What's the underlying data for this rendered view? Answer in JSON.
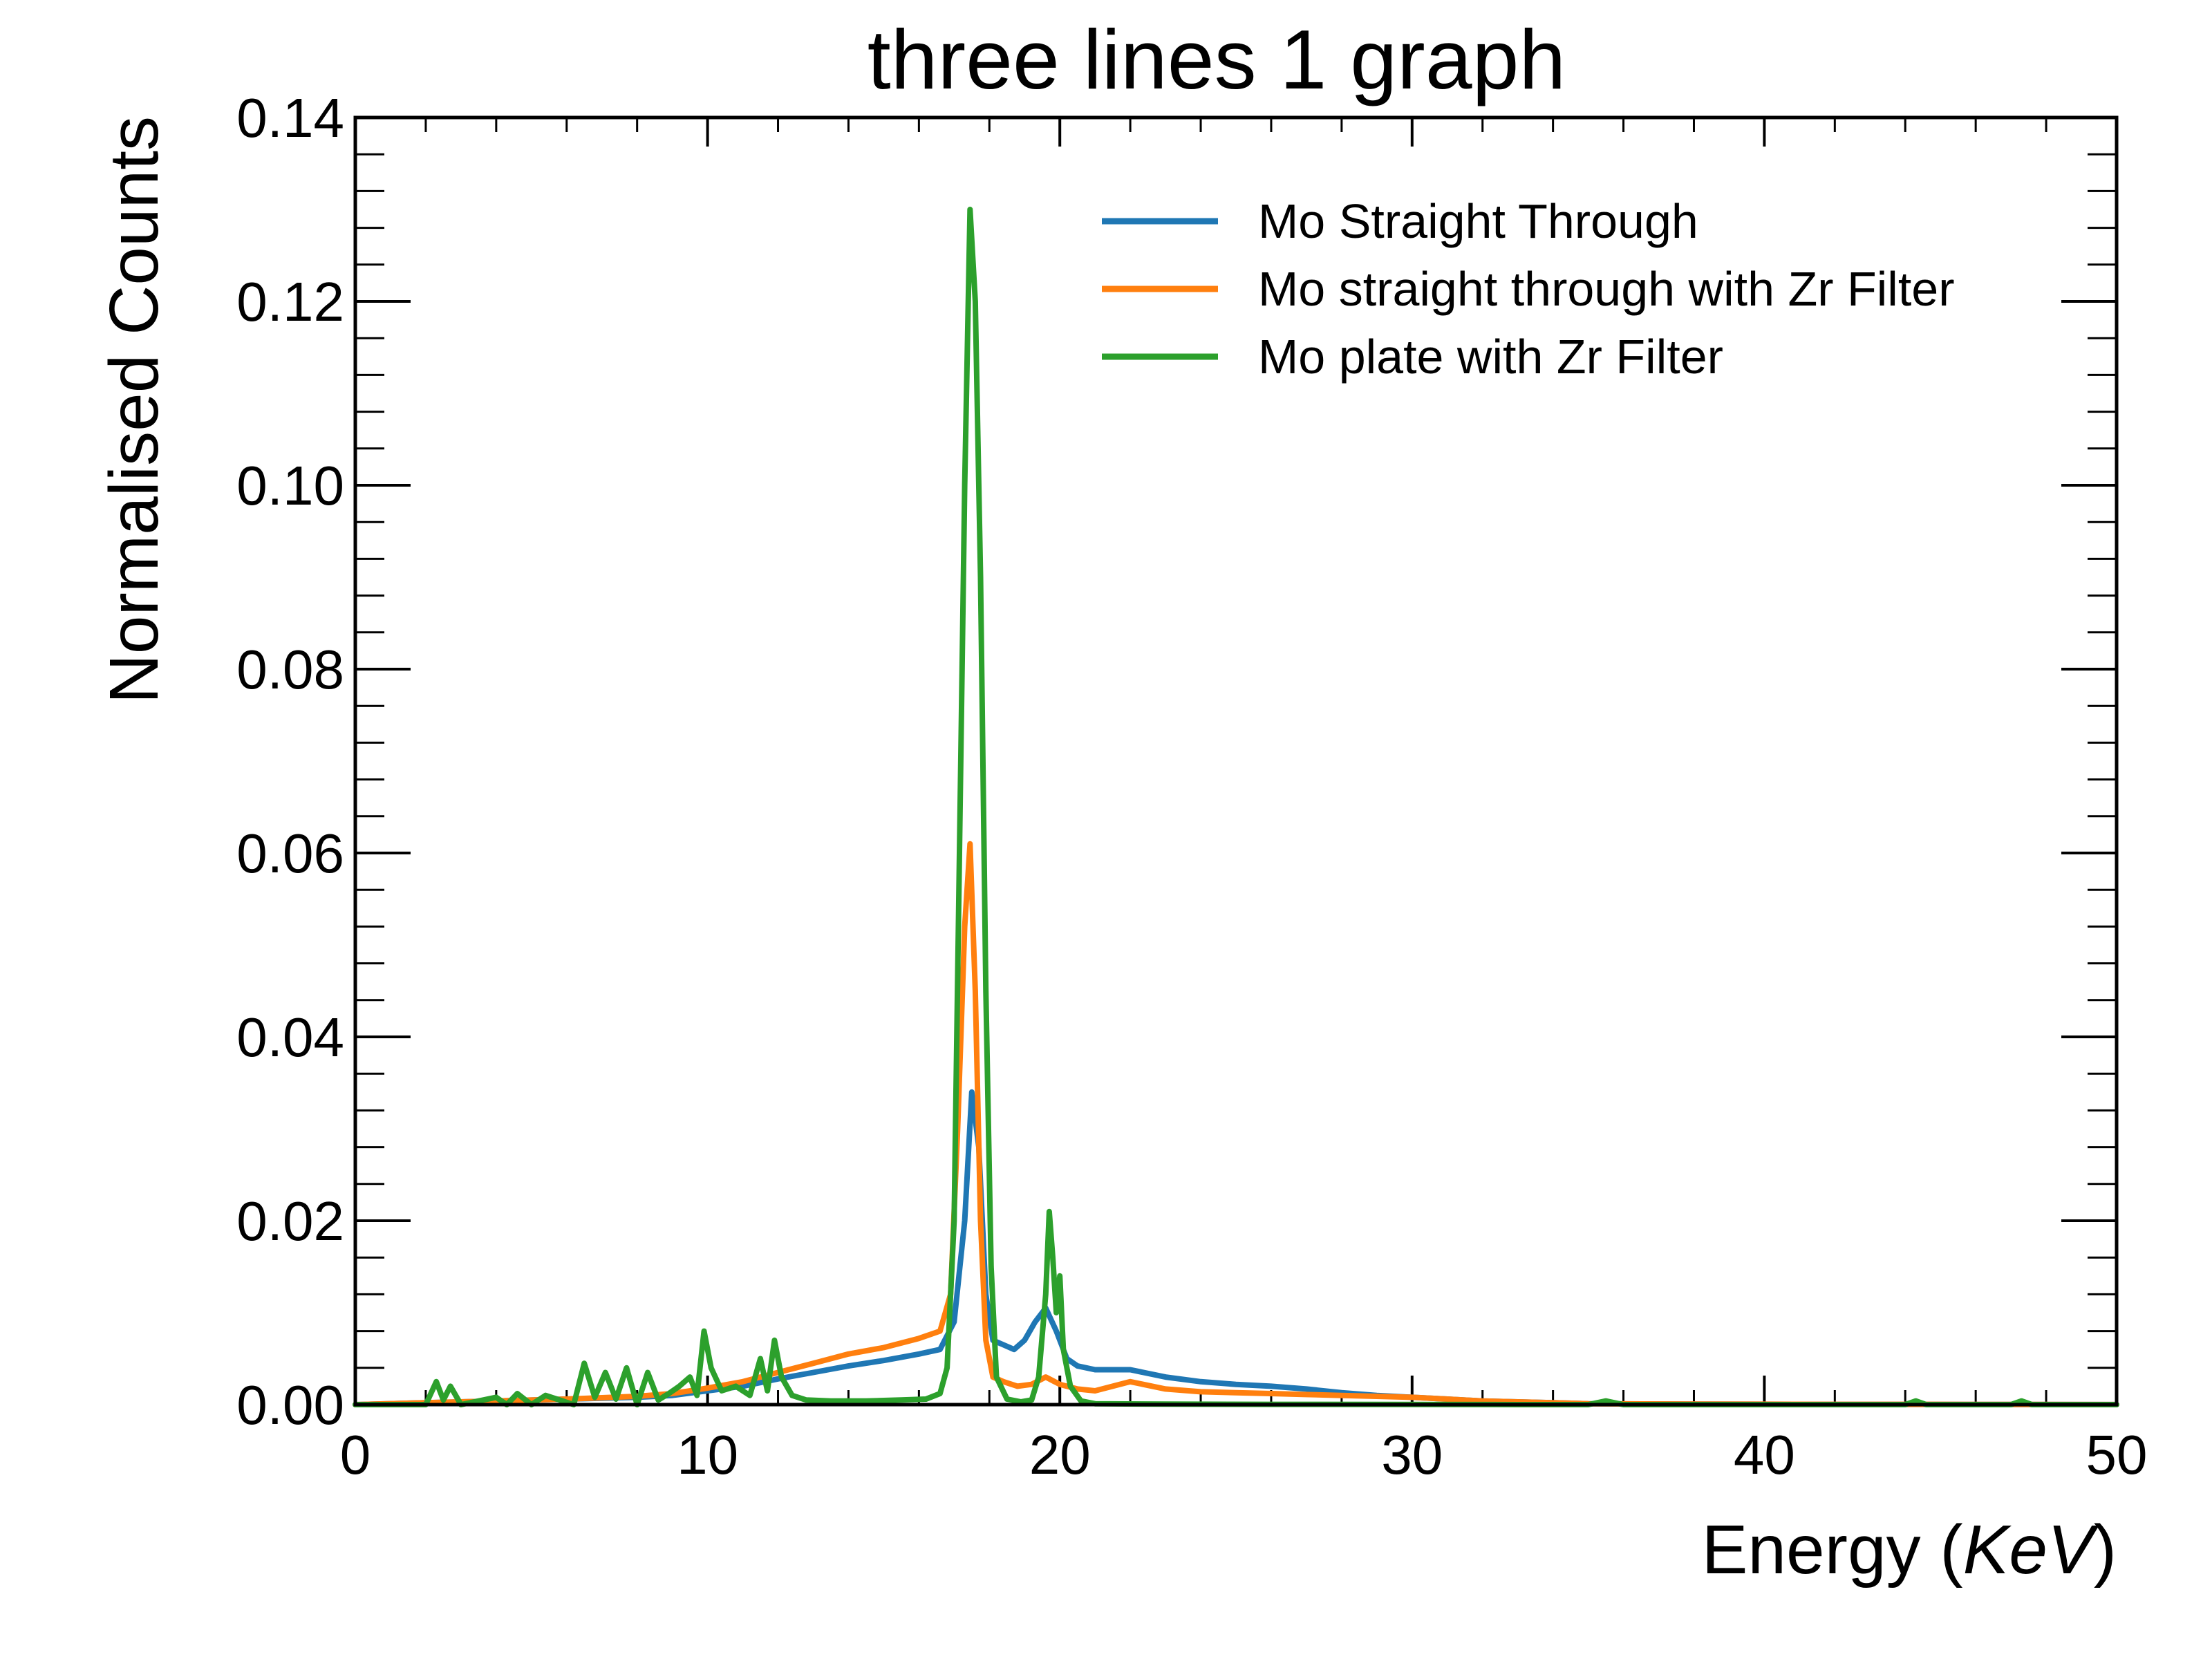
{
  "chart_data": {
    "type": "line",
    "title": "three lines 1 graph",
    "xlabel": {
      "prefix": "Energy (",
      "unit": "KeV",
      "suffix": ")"
    },
    "ylabel": "Normalised Counts",
    "xlim": [
      0,
      50
    ],
    "ylim": [
      0,
      0.14
    ],
    "xticks": [
      0,
      10,
      20,
      30,
      40,
      50
    ],
    "xtick_labels": [
      "0",
      "10",
      "20",
      "30",
      "40",
      "50"
    ],
    "yticks": [
      0,
      0.02,
      0.04,
      0.06,
      0.08,
      0.1,
      0.12,
      0.14
    ],
    "ytick_labels": [
      "0.00",
      "0.02",
      "0.04",
      "0.06",
      "0.08",
      "0.10",
      "0.12",
      "0.14"
    ],
    "grid": false,
    "legend_position": "top-right",
    "series": [
      {
        "name": "Mo Straight Through",
        "color": "#1f77b4",
        "x": [
          0,
          2,
          4,
          6,
          8,
          9,
          10,
          11,
          12,
          13,
          14,
          15,
          16,
          16.6,
          17.0,
          17.3,
          17.5,
          17.7,
          17.9,
          18.1,
          18.4,
          18.7,
          19.0,
          19.3,
          19.6,
          19.9,
          20.2,
          20.5,
          21,
          22,
          23,
          24,
          25,
          26,
          27,
          28,
          29,
          30,
          31,
          32,
          33,
          34,
          35,
          38,
          42,
          46,
          50
        ],
        "y": [
          0,
          0.0002,
          0.0004,
          0.0006,
          0.0008,
          0.001,
          0.0015,
          0.002,
          0.0028,
          0.0035,
          0.0042,
          0.0048,
          0.0055,
          0.006,
          0.009,
          0.02,
          0.034,
          0.028,
          0.012,
          0.007,
          0.0065,
          0.006,
          0.007,
          0.009,
          0.0105,
          0.008,
          0.005,
          0.0042,
          0.0038,
          0.0038,
          0.003,
          0.0025,
          0.0022,
          0.002,
          0.0017,
          0.0013,
          0.001,
          0.0008,
          0.0006,
          0.0004,
          0.0003,
          0.0002,
          0.0001,
          5e-05,
          3e-05,
          2e-05,
          1e-05
        ]
      },
      {
        "name": "Mo straight through with Zr Filter",
        "color": "#ff7f0e",
        "x": [
          0,
          2,
          4,
          6,
          8,
          9,
          10,
          11,
          12,
          13,
          14,
          15,
          16,
          16.6,
          16.9,
          17.1,
          17.3,
          17.45,
          17.6,
          17.75,
          17.9,
          18.1,
          18.4,
          18.8,
          19.2,
          19.6,
          20.0,
          20.5,
          21,
          22,
          23,
          24,
          25,
          26,
          27,
          28,
          29,
          30,
          31,
          32,
          33,
          34,
          35,
          38,
          42,
          46,
          50
        ],
        "y": [
          0,
          0.0002,
          0.0004,
          0.0006,
          0.0009,
          0.0012,
          0.0018,
          0.0025,
          0.0035,
          0.0045,
          0.0055,
          0.0062,
          0.0072,
          0.008,
          0.012,
          0.03,
          0.052,
          0.061,
          0.045,
          0.02,
          0.007,
          0.003,
          0.0025,
          0.002,
          0.0022,
          0.003,
          0.0022,
          0.0017,
          0.0015,
          0.0025,
          0.0017,
          0.0014,
          0.0013,
          0.0012,
          0.0011,
          0.001,
          0.0009,
          0.0008,
          0.0006,
          0.0004,
          0.0003,
          0.0002,
          0.0001,
          5e-05,
          3e-05,
          2e-05,
          1e-05
        ]
      },
      {
        "name": "Mo plate with Zr Filter",
        "color": "#2ca02c",
        "x": [
          0,
          2.0,
          2.3,
          2.5,
          2.7,
          3.0,
          4.0,
          4.3,
          4.6,
          5.0,
          5.4,
          5.8,
          6.2,
          6.5,
          6.8,
          7.1,
          7.4,
          7.7,
          8.0,
          8.3,
          8.6,
          8.9,
          9.2,
          9.5,
          9.7,
          9.9,
          10.1,
          10.4,
          10.8,
          11.2,
          11.5,
          11.7,
          11.9,
          12.1,
          12.4,
          12.8,
          13.5,
          14.5,
          15.5,
          16.2,
          16.6,
          16.8,
          17.0,
          17.15,
          17.3,
          17.45,
          17.6,
          17.75,
          17.9,
          18.05,
          18.2,
          18.5,
          18.9,
          19.2,
          19.4,
          19.6,
          19.7,
          19.8,
          19.9,
          20.0,
          20.1,
          20.3,
          20.6,
          21,
          23,
          26,
          30,
          33,
          35,
          35.5,
          36,
          40,
          44,
          44.3,
          44.6,
          47,
          47.3,
          47.6,
          50
        ],
        "y": [
          0,
          0,
          0.0025,
          0.0005,
          0.002,
          0,
          0.0008,
          0,
          0.0012,
          0,
          0.001,
          0.0005,
          0,
          0.0045,
          0.0008,
          0.0035,
          0.0006,
          0.004,
          0,
          0.0035,
          0.0005,
          0.0012,
          0.002,
          0.003,
          0.001,
          0.008,
          0.004,
          0.0015,
          0.002,
          0.001,
          0.005,
          0.0015,
          0.007,
          0.003,
          0.001,
          0.0005,
          0.0004,
          0.0004,
          0.0005,
          0.0006,
          0.0012,
          0.004,
          0.02,
          0.06,
          0.1,
          0.13,
          0.12,
          0.09,
          0.045,
          0.015,
          0.003,
          0.0006,
          0.0003,
          0.0005,
          0.003,
          0.012,
          0.021,
          0.016,
          0.01,
          0.014,
          0.006,
          0.002,
          0.0004,
          0.0001,
          5e-05,
          3e-05,
          2e-05,
          0,
          0,
          0.0004,
          0,
          0,
          0,
          0.0004,
          0,
          0,
          0.0004,
          0,
          0
        ]
      }
    ]
  }
}
